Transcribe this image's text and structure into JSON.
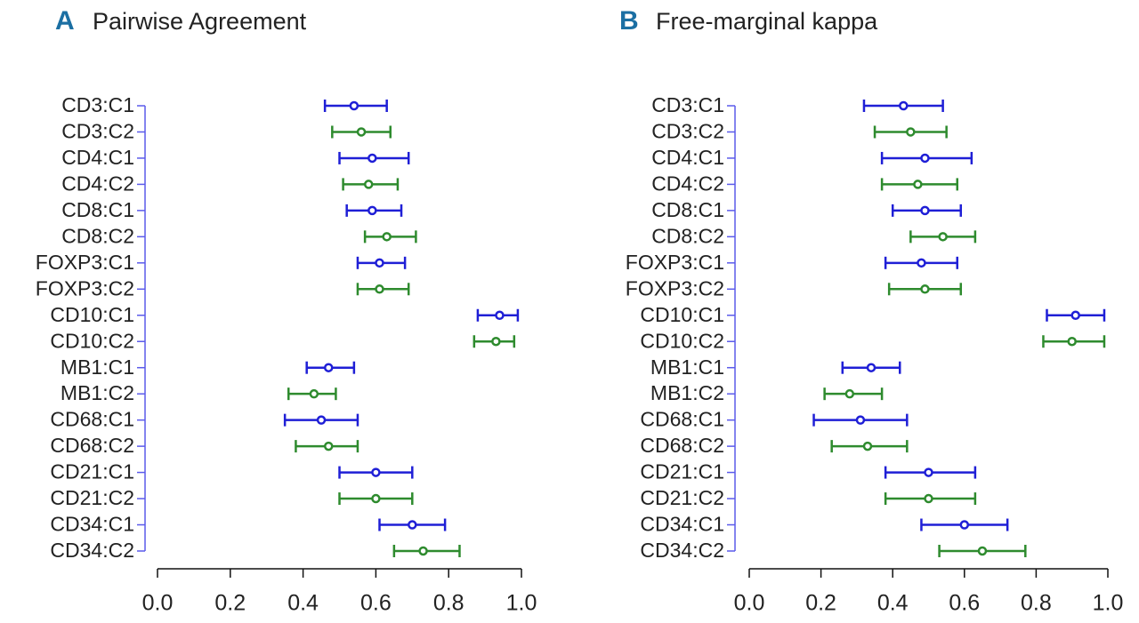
{
  "chart_data": [
    {
      "type": "errorbar",
      "panel": "A",
      "title": "Pairwise Agreement",
      "categories": [
        "CD3:C1",
        "CD3:C2",
        "CD4:C1",
        "CD4:C2",
        "CD8:C1",
        "CD8:C2",
        "FOXP3:C1",
        "FOXP3:C2",
        "CD10:C1",
        "CD10:C2",
        "MB1:C1",
        "MB1:C2",
        "CD68:C1",
        "CD68:C2",
        "CD21:C1",
        "CD21:C2",
        "CD34:C1",
        "CD34:C2"
      ],
      "values": [
        0.54,
        0.56,
        0.59,
        0.58,
        0.59,
        0.63,
        0.61,
        0.61,
        0.94,
        0.93,
        0.47,
        0.43,
        0.45,
        0.47,
        0.6,
        0.6,
        0.7,
        0.73
      ],
      "lower": [
        0.46,
        0.48,
        0.5,
        0.51,
        0.52,
        0.57,
        0.55,
        0.55,
        0.88,
        0.87,
        0.41,
        0.36,
        0.35,
        0.38,
        0.5,
        0.5,
        0.61,
        0.65
      ],
      "upper": [
        0.63,
        0.64,
        0.69,
        0.66,
        0.67,
        0.71,
        0.68,
        0.69,
        0.99,
        0.98,
        0.54,
        0.49,
        0.55,
        0.55,
        0.7,
        0.7,
        0.79,
        0.83
      ],
      "colors": [
        "#1f1fd6",
        "#2e8b2e",
        "#1f1fd6",
        "#2e8b2e",
        "#1f1fd6",
        "#2e8b2e",
        "#1f1fd6",
        "#2e8b2e",
        "#1f1fd6",
        "#2e8b2e",
        "#1f1fd6",
        "#2e8b2e",
        "#1f1fd6",
        "#2e8b2e",
        "#1f1fd6",
        "#2e8b2e",
        "#1f1fd6",
        "#2e8b2e"
      ],
      "xlim": [
        0,
        1
      ],
      "xticks": [
        {
          "value": 0,
          "label": "0.0"
        },
        {
          "value": 0.2,
          "label": "0.2"
        },
        {
          "value": 0.4,
          "label": "0.4"
        },
        {
          "value": 0.6,
          "label": "0.6"
        },
        {
          "value": 0.8,
          "label": "0.8"
        },
        {
          "value": 1,
          "label": "1.0"
        }
      ]
    },
    {
      "type": "errorbar",
      "panel": "B",
      "title": "Free-marginal kappa",
      "categories": [
        "CD3:C1",
        "CD3:C2",
        "CD4:C1",
        "CD4:C2",
        "CD8:C1",
        "CD8:C2",
        "FOXP3:C1",
        "FOXP3:C2",
        "CD10:C1",
        "CD10:C2",
        "MB1:C1",
        "MB1:C2",
        "CD68:C1",
        "CD68:C2",
        "CD21:C1",
        "CD21:C2",
        "CD34:C1",
        "CD34:C2"
      ],
      "values": [
        0.43,
        0.45,
        0.49,
        0.47,
        0.49,
        0.54,
        0.48,
        0.49,
        0.91,
        0.9,
        0.34,
        0.28,
        0.31,
        0.33,
        0.5,
        0.5,
        0.6,
        0.65
      ],
      "lower": [
        0.32,
        0.35,
        0.37,
        0.37,
        0.4,
        0.45,
        0.38,
        0.39,
        0.83,
        0.82,
        0.26,
        0.21,
        0.18,
        0.23,
        0.38,
        0.38,
        0.48,
        0.53
      ],
      "upper": [
        0.54,
        0.55,
        0.62,
        0.58,
        0.59,
        0.63,
        0.58,
        0.59,
        0.99,
        0.99,
        0.42,
        0.37,
        0.44,
        0.44,
        0.63,
        0.63,
        0.72,
        0.77
      ],
      "colors": [
        "#1f1fd6",
        "#2e8b2e",
        "#1f1fd6",
        "#2e8b2e",
        "#1f1fd6",
        "#2e8b2e",
        "#1f1fd6",
        "#2e8b2e",
        "#1f1fd6",
        "#2e8b2e",
        "#1f1fd6",
        "#2e8b2e",
        "#1f1fd6",
        "#2e8b2e",
        "#1f1fd6",
        "#2e8b2e",
        "#1f1fd6",
        "#2e8b2e"
      ],
      "xlim": [
        0,
        1
      ],
      "xticks": [
        {
          "value": 0,
          "label": "0.0"
        },
        {
          "value": 0.2,
          "label": "0.2"
        },
        {
          "value": 0.4,
          "label": "0.4"
        },
        {
          "value": 0.6,
          "label": "0.6"
        },
        {
          "value": 0.8,
          "label": "0.8"
        },
        {
          "value": 1,
          "label": "1.0"
        }
      ]
    }
  ]
}
